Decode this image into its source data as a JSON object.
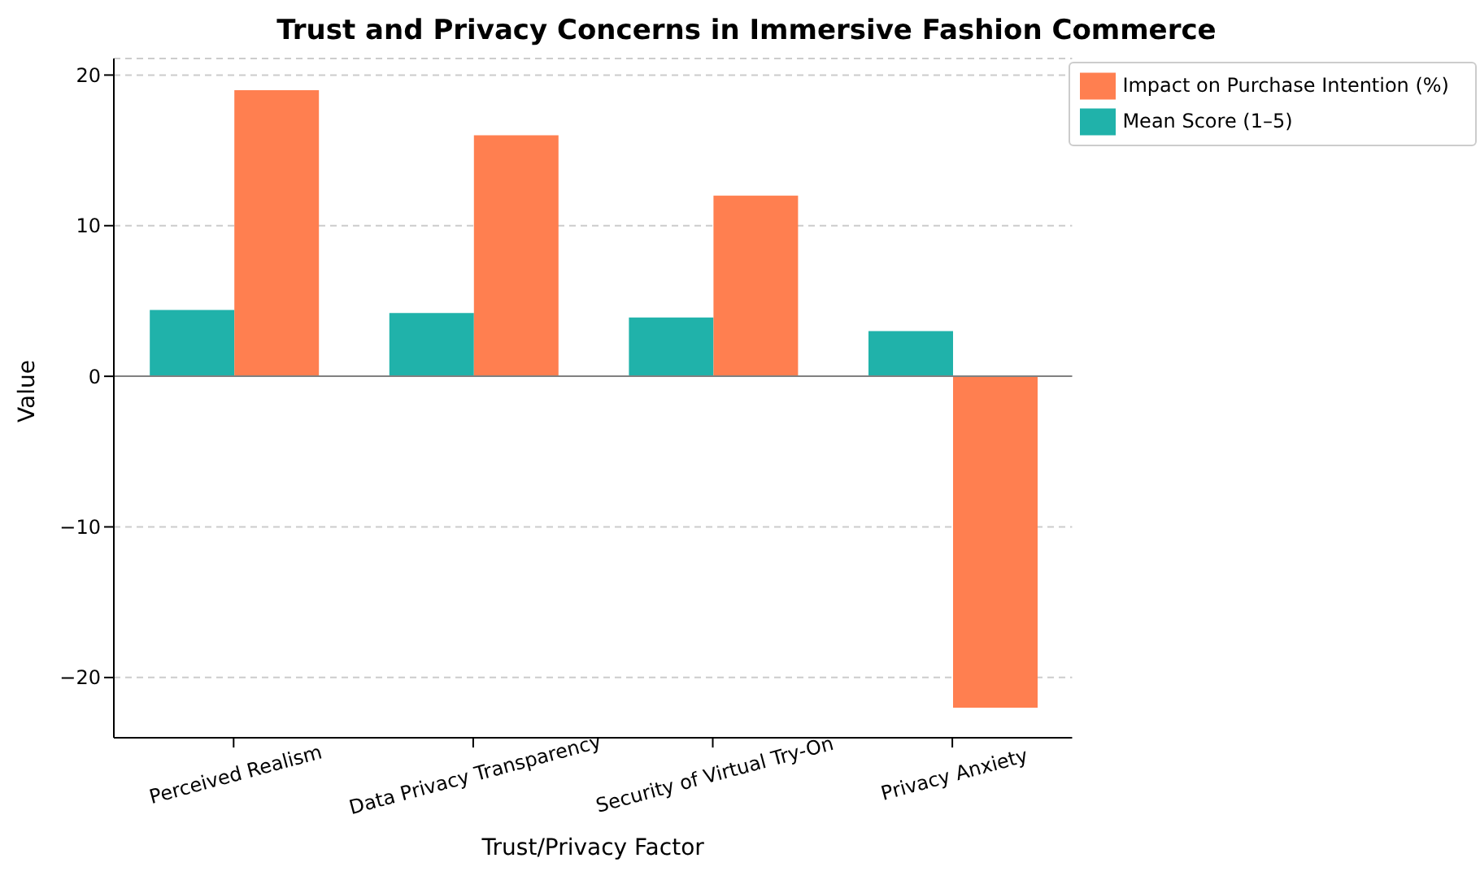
{
  "chart_data": {
    "type": "bar",
    "title": "Trust and Privacy Concerns in Immersive Fashion Commerce",
    "xlabel": "Trust/Privacy Factor",
    "ylabel": "Value",
    "categories": [
      "Perceived Realism",
      "Data Privacy Transparency",
      "Security of Virtual Try-On",
      "Privacy Anxiety"
    ],
    "series": [
      {
        "name": "Mean Score (1–5)",
        "color": "#20b2aa",
        "values": [
          4.4,
          4.2,
          3.9,
          3.0
        ]
      },
      {
        "name": "Impact on Purchase Intention (%)",
        "color": "#ff7f50",
        "values": [
          19,
          16,
          12,
          -22
        ]
      }
    ],
    "ylim": [
      -24,
      21.1
    ],
    "yticks": [
      -20,
      -10,
      0,
      10,
      20
    ],
    "grid": "y",
    "legend": "top right",
    "ref_lines": [
      {
        "axis": "y",
        "value": 0,
        "color": "#808080"
      }
    ]
  }
}
